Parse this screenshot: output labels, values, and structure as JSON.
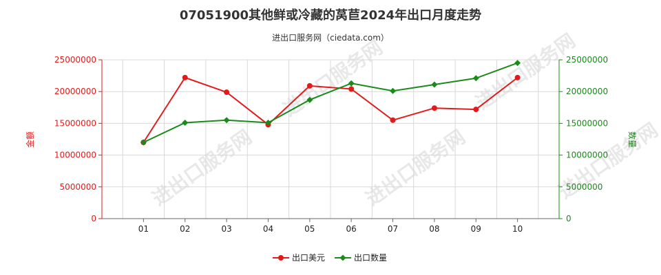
{
  "chart_data": {
    "type": "line",
    "title": "07051900其他鲜或冷藏的莴苣2024年出口月度走势",
    "subtitle": "进出口服务网（ciedata.com）",
    "categories": [
      "01",
      "02",
      "03",
      "04",
      "05",
      "06",
      "07",
      "08",
      "09",
      "10"
    ],
    "y_left": {
      "label": "金额",
      "ylim": [
        0,
        25000000
      ],
      "ticks": [
        "0",
        "5000000",
        "10000000",
        "15000000",
        "20000000",
        "25000000"
      ]
    },
    "y_right": {
      "label": "数量",
      "ylim": [
        0,
        25000000
      ],
      "ticks": [
        "0",
        "5000000",
        "10000000",
        "15000000",
        "20000000",
        "25000000"
      ]
    },
    "series": [
      {
        "name": "出口美元",
        "axis": "left",
        "color": "#e31a1a",
        "values": [
          12000000,
          22200000,
          19900000,
          14800000,
          20900000,
          20400000,
          15500000,
          17400000,
          17200000,
          22200000
        ]
      },
      {
        "name": "出口数量",
        "axis": "right",
        "color": "#1a8a1a",
        "values": [
          12000000,
          15100000,
          15500000,
          15100000,
          18700000,
          21300000,
          20100000,
          21100000,
          22100000,
          24500000
        ]
      }
    ],
    "grid": true,
    "legend": "bottom-center",
    "watermark": "进出口服务网"
  }
}
